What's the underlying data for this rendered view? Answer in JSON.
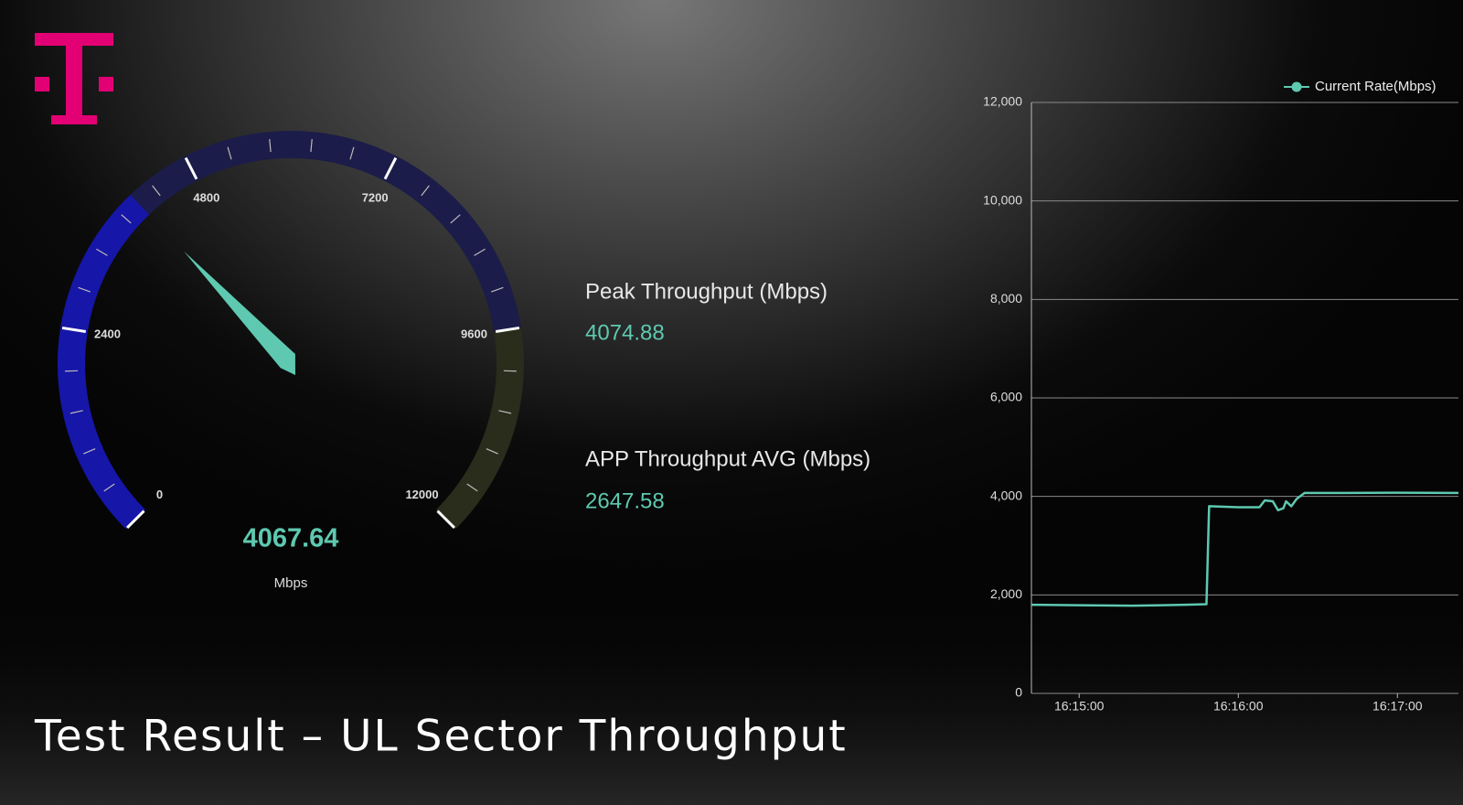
{
  "title": "Test Result – UL Sector Throughput",
  "gauge": {
    "value": 4067.64,
    "unit": "Mbps",
    "min": 0,
    "max": 12000,
    "ticks": [
      0,
      2400,
      4800,
      7200,
      9600,
      12000
    ],
    "color": "#5ec9b0"
  },
  "stats": [
    {
      "label": "Peak Throughput (Mbps)",
      "value": 4074.88
    },
    {
      "label": "APP Throughput AVG (Mbps)",
      "value": 2647.58
    }
  ],
  "chart_data": {
    "type": "line",
    "x": [
      "16:14:42",
      "16:15:00",
      "16:15:20",
      "16:15:40",
      "16:15:48",
      "16:15:49",
      "16:16:00",
      "16:16:08",
      "16:16:10",
      "16:16:13",
      "16:16:15",
      "16:16:17",
      "16:16:18",
      "16:16:20",
      "16:16:22",
      "16:16:25",
      "16:16:40",
      "16:17:00",
      "16:17:23"
    ],
    "series": [
      {
        "name": "Current Rate(Mbps)",
        "color": "#5ec9b0",
        "values": [
          1800,
          1790,
          1780,
          1800,
          1810,
          3800,
          3780,
          3780,
          3920,
          3900,
          3720,
          3760,
          3900,
          3800,
          3950,
          4070,
          4070,
          4075,
          4070
        ]
      }
    ],
    "xlim": [
      "16:14:42",
      "16:17:23"
    ],
    "xticks": [
      "16:15:00",
      "16:16:00",
      "16:17:00"
    ],
    "ylim": [
      0,
      12000
    ],
    "yticks": [
      0,
      {
        "value": 2000,
        "label": "2,000"
      },
      {
        "value": 4000,
        "label": "4,000"
      },
      {
        "value": 6000,
        "label": "6,000"
      },
      {
        "value": 8000,
        "label": "8,000"
      },
      {
        "value": 10000,
        "label": "10,000"
      },
      {
        "value": 12000,
        "label": "12,000"
      }
    ],
    "grid": true,
    "legend": "top-right"
  }
}
